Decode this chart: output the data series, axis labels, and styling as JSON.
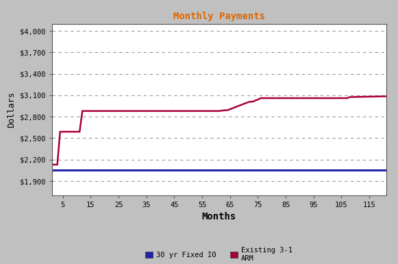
{
  "title": "Monthly Payments",
  "title_color": "#dd6600",
  "xlabel": "Months",
  "ylabel": "Dollars",
  "background_color": "#c0c0c0",
  "plot_bg_color": "#ffffff",
  "ylim": [
    1700,
    4100
  ],
  "yticks": [
    1900,
    2200,
    2500,
    2800,
    3100,
    3400,
    3700,
    4000
  ],
  "xticks": [
    5,
    15,
    25,
    35,
    45,
    55,
    65,
    75,
    85,
    95,
    105,
    115
  ],
  "xlim": [
    1,
    121
  ],
  "fixed_io_value": 2055,
  "fixed_io_color": "#2222aa",
  "arm_color": "#aa0033",
  "arm_x": [
    1,
    3,
    4,
    5,
    11,
    12,
    16,
    17,
    60,
    61,
    63,
    64,
    72,
    73,
    75,
    76,
    107,
    108,
    121
  ],
  "arm_y": [
    2130,
    2130,
    2590,
    2590,
    2590,
    2880,
    2880,
    2880,
    2880,
    2880,
    2890,
    2890,
    3010,
    3010,
    3040,
    3060,
    3060,
    3075,
    3085
  ],
  "legend_fixed_label": "30 yr Fixed IO",
  "legend_arm_label": "Existing 3-1\nARM",
  "grid_color": "#999999",
  "grid_linestyle": "--"
}
